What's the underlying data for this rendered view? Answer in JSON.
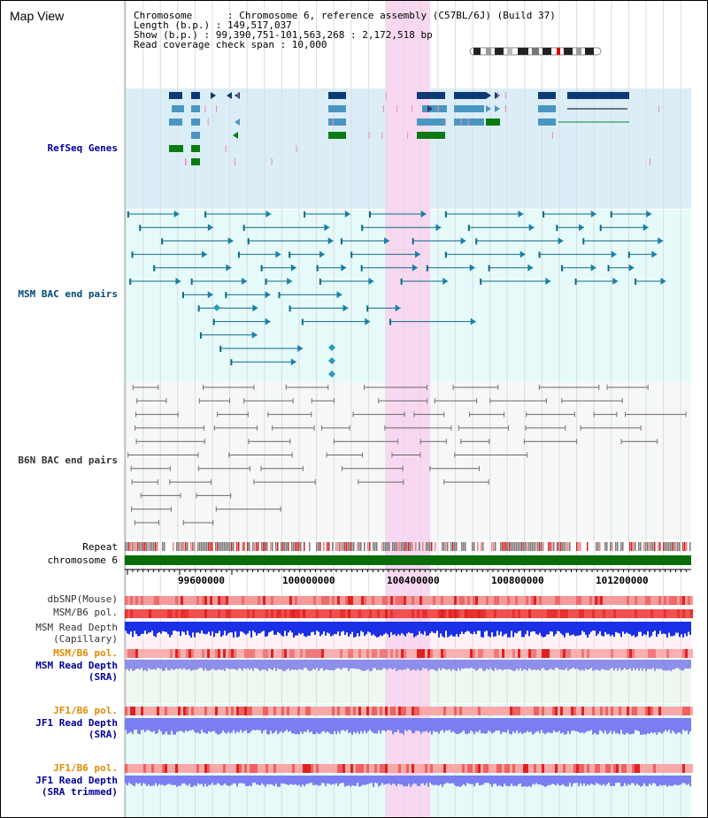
{
  "window": {
    "title": "Map View"
  },
  "info": {
    "chromosome": "Chromosome      : Chromosome 6, reference assembly (C57BL/6J) (Build 37)",
    "length": "Length (b.p.) : 149,517,037",
    "show": "Show (b.p.) : 99,390,751-101,563,268 : 2,172,518 bp",
    "coverage": "Read coverage check span : 10,000"
  },
  "tracks": {
    "refseq": "RefSeq Genes",
    "msm_bac": "MSM BAC end pairs",
    "b6n_bac": "B6N BAC end pairs",
    "repeat": "Repeat",
    "chromosome": "chromosome 6",
    "dbsnp": "dbSNP(Mouse)",
    "msm_b6_pol_1": "MSM/B6 pol.",
    "msm_depth_cap_1": "MSM Read Depth",
    "msm_depth_cap_2": "(Capillary)",
    "msm_b6_pol_2": "MSM/B6 pol.",
    "msm_depth_sra_1": "MSM Read Depth",
    "msm_depth_sra_2": "(SRA)",
    "jf1_b6_pol_1": "JF1/B6 pol.",
    "jf1_depth_sra_1": "JF1 Read Depth",
    "jf1_depth_sra_2": "(SRA)",
    "jf1_b6_pol_2": "JF1/B6 pol.",
    "jf1_depth_trim_1": "JF1 Read Depth",
    "jf1_depth_trim_2": "(SRA trimmed)"
  },
  "axis": {
    "ticks": [
      "99600000",
      "100000000",
      "100400000",
      "100800000",
      "101200000"
    ]
  },
  "colors": {
    "refseq_bg": "#dbeef8",
    "msm_bg": "#e6fafa",
    "b6n_bg": "#f6f8f8",
    "highlight": "#f8d8f0",
    "gene_dark": "#0d3a73",
    "gene_mid": "#4a96c2",
    "gene_green": "#0b7a12",
    "msm_line": "#0f6a88",
    "b6n_line": "#666666",
    "chromosome_bar": "#0a6d0a",
    "msm_label": "#004b7a",
    "navy_label": "#000099",
    "orange_label": "#e08a00"
  }
}
